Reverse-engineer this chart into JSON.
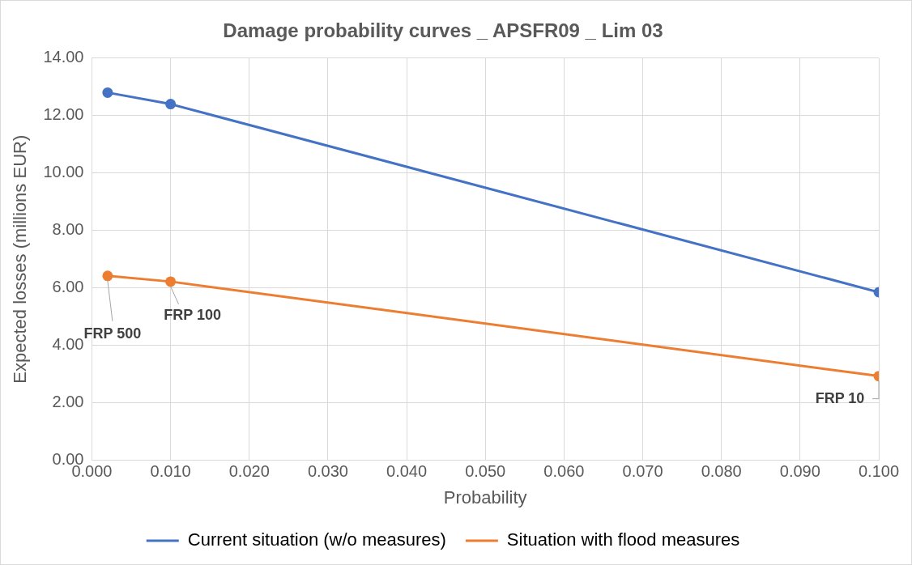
{
  "chart_data": {
    "type": "line",
    "title": "Damage probability curves _ APSFR09 _ Lim 03",
    "xlabel": "Probability",
    "ylabel": "Expected losses (millions EUR)",
    "x": [
      0.002,
      0.01,
      0.1
    ],
    "series": [
      {
        "name": "Current situation (w/o measures)",
        "color": "#4472c4",
        "values": [
          12.8,
          12.4,
          5.85
        ]
      },
      {
        "name": "Situation with flood measures",
        "color": "#ed7d31",
        "values": [
          6.42,
          6.22,
          2.93
        ]
      }
    ],
    "xlim": [
      0,
      0.1
    ],
    "xticks": [
      {
        "value": 0,
        "label": "0.000"
      },
      {
        "value": 0.01,
        "label": "0.010"
      },
      {
        "value": 0.02,
        "label": "0.020"
      },
      {
        "value": 0.03,
        "label": "0.030"
      },
      {
        "value": 0.04,
        "label": "0.040"
      },
      {
        "value": 0.05,
        "label": "0.050"
      },
      {
        "value": 0.06,
        "label": "0.060"
      },
      {
        "value": 0.07,
        "label": "0.070"
      },
      {
        "value": 0.08,
        "label": "0.080"
      },
      {
        "value": 0.09,
        "label": "0.090"
      },
      {
        "value": 0.1,
        "label": "0.100"
      }
    ],
    "ylim": [
      0,
      14
    ],
    "yticks": [
      {
        "value": 0,
        "label": "0.00"
      },
      {
        "value": 2,
        "label": "2.00"
      },
      {
        "value": 4,
        "label": "4.00"
      },
      {
        "value": 6,
        "label": "6.00"
      },
      {
        "value": 8,
        "label": "8.00"
      },
      {
        "value": 10,
        "label": "10.00"
      },
      {
        "value": 12,
        "label": "12.00"
      },
      {
        "value": 14,
        "label": "14.00"
      }
    ],
    "annotations": [
      {
        "text": "FRP 500",
        "x": 0.002,
        "y": 6.42
      },
      {
        "text": "FRP 100",
        "x": 0.01,
        "y": 6.22
      },
      {
        "text": "FRP 10",
        "x": 0.1,
        "y": 2.93
      }
    ],
    "grid": true,
    "legend": "bottom",
    "marker": "circle",
    "line_style": "solid"
  }
}
